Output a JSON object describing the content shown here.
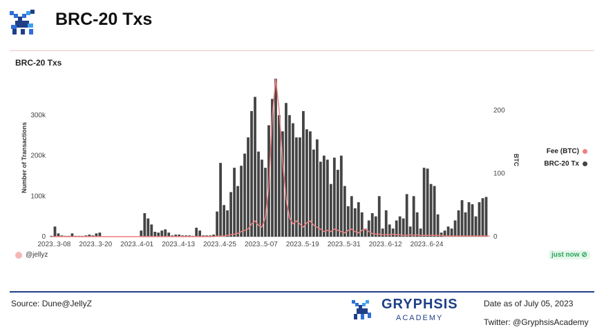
{
  "header": {
    "title": "BRC-20 Txs",
    "logo_icon": "gryphsis-griffin-icon"
  },
  "chart_card": {
    "title": "BRC-20 Txs",
    "credit": "@jellyz",
    "status": "just now ⊘",
    "legend": [
      {
        "label": "Fee (BTC)",
        "color": "#f08080"
      },
      {
        "label": "BRC-20 Tx",
        "color": "#444444"
      }
    ]
  },
  "footer": {
    "source": "Source: Dune@JellyZ",
    "brand_name": "GRYPHSIS",
    "brand_sub": "ACADEMY",
    "date_note": "Date as of July 05, 2023",
    "twitter": "Twitter: @GryphsisAcademy"
  },
  "chart_data": {
    "type": "bar",
    "title": "BRC-20 Txs",
    "ylabel": "Number of Transactions",
    "y2label": "BTC",
    "ylim": [
      0,
      390000
    ],
    "y2lim": [
      0,
      250
    ],
    "yticks": [
      0,
      100000,
      200000,
      300000
    ],
    "ytick_labels": [
      "0",
      "100k",
      "200k",
      "300k"
    ],
    "y2ticks": [
      0,
      100,
      200
    ],
    "y2tick_labels": [
      "0",
      "100",
      "200"
    ],
    "xtick_labels": [
      "2023..3-08",
      "2023..3-20",
      "2023..4-01",
      "2023..4-13",
      "2023..4-25",
      "2023..5-07",
      "2023..5-19",
      "2023..5-31",
      "2023..6-12",
      "2023..6-24"
    ],
    "xtick_every": 12,
    "legend_position": "right",
    "grid": false,
    "series": [
      {
        "name": "BRC-20 Tx",
        "kind": "bar",
        "axis": "left",
        "color": "#444444",
        "values": [
          2000,
          25000,
          8000,
          3000,
          2000,
          2000,
          8000,
          2000,
          2000,
          2000,
          3000,
          5000,
          3000,
          8000,
          10000,
          1000,
          1000,
          1000,
          1000,
          1000,
          1000,
          1000,
          1000,
          1000,
          1000,
          1000,
          15000,
          58000,
          45000,
          30000,
          12000,
          10000,
          15000,
          18000,
          10000,
          3000,
          5000,
          5000,
          3000,
          3000,
          3000,
          2000,
          22000,
          15000,
          3000,
          3000,
          3000,
          5000,
          62000,
          182000,
          78000,
          65000,
          110000,
          170000,
          125000,
          175000,
          205000,
          245000,
          310000,
          345000,
          210000,
          190000,
          170000,
          275000,
          340000,
          390000,
          300000,
          260000,
          330000,
          300000,
          280000,
          245000,
          245000,
          310000,
          265000,
          260000,
          215000,
          240000,
          185000,
          200000,
          190000,
          130000,
          195000,
          165000,
          200000,
          125000,
          75000,
          100000,
          70000,
          85000,
          60000,
          20000,
          40000,
          58000,
          50000,
          100000,
          20000,
          65000,
          30000,
          20000,
          40000,
          50000,
          45000,
          105000,
          25000,
          100000,
          60000,
          20000,
          170000,
          168000,
          130000,
          125000,
          55000,
          10000,
          15000,
          25000,
          20000,
          40000,
          65000,
          90000,
          60000,
          85000,
          80000,
          50000,
          85000,
          95000,
          98000
        ]
      },
      {
        "name": "Fee (BTC)",
        "kind": "line",
        "axis": "right",
        "color": "#f08080",
        "values": [
          0,
          0,
          0,
          0,
          0,
          0,
          0,
          0,
          0,
          0,
          0,
          0,
          0,
          0,
          0,
          0,
          0,
          0,
          0,
          0,
          0,
          0,
          0,
          0,
          0,
          0,
          0,
          0,
          0,
          0,
          0,
          0,
          0,
          0,
          0,
          0,
          0,
          0,
          0,
          0,
          0,
          0,
          0,
          0,
          0,
          0,
          0,
          0,
          1,
          1,
          1,
          2,
          3,
          4,
          5,
          8,
          10,
          12,
          20,
          25,
          18,
          15,
          30,
          80,
          190,
          250,
          200,
          120,
          60,
          30,
          20,
          25,
          20,
          15,
          22,
          25,
          18,
          15,
          12,
          8,
          10,
          8,
          12,
          10,
          8,
          6,
          10,
          12,
          8,
          6,
          10,
          12,
          8,
          5,
          4,
          4,
          3,
          3,
          3,
          4,
          3,
          3,
          2,
          2,
          3,
          2,
          3,
          2,
          2,
          2,
          2,
          2,
          2,
          2,
          1,
          1,
          1,
          1,
          1,
          1,
          1,
          1,
          1,
          1,
          1,
          1,
          1,
          1
        ]
      }
    ]
  }
}
